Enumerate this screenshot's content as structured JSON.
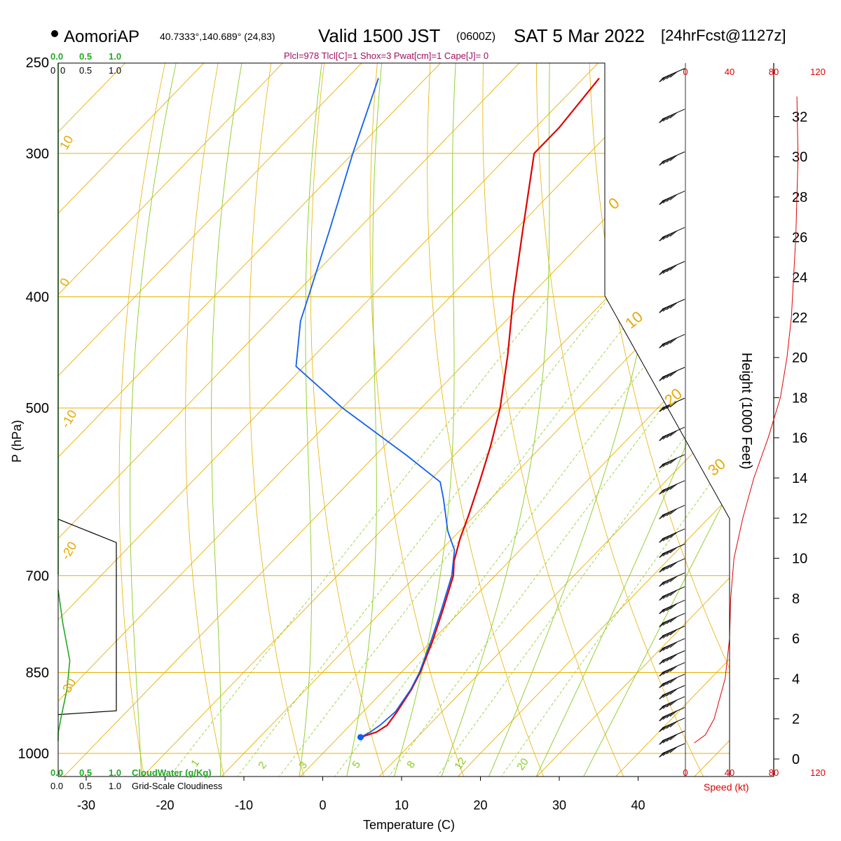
{
  "header": {
    "station": "AomoriAP",
    "coords": "40.7333°,140.689° (24,83)",
    "valid": "Valid 1500 JST",
    "utc": "(0600Z)",
    "date": "SAT 5 Mar 2022",
    "forecast": "[24hrFcst@1127z]",
    "params": "Plcl=978 Tlcl[C]=1 Shox=3 Pwat[cm]=1 Cape[J]= 0"
  },
  "labels": {
    "y_axis": "P (hPa)",
    "x_axis": "Temperature (C)",
    "height_axis": "Height (1000 Feet)",
    "speed_axis": "Speed (kt)",
    "cloud_water": "CloudWater (g/Kg)",
    "cloudiness": "Grid-Scale Cloudiness",
    "scale_0": "0.0",
    "scale_05": "0.5",
    "scale_10": "1.0",
    "scale_0_short": "0"
  },
  "colors": {
    "temperature": "#e00000",
    "dewpoint": "#1060f0",
    "isobar_isotherm": "#e8b000",
    "mixing_ratio": "#88cc22",
    "moist_adiabat": "#88cc22",
    "cloud_water": "#22aa22",
    "wind_speed": "#e00000",
    "cloudiness": "#000000"
  },
  "chart_data": {
    "type": "line",
    "title": "AomoriAP Valid 1500 JST SAT 5 Mar 2022",
    "xlabel": "Temperature (C)",
    "ylabel": "P (hPa)",
    "xlim": [
      -33.5,
      47
    ],
    "ylim": [
      1030,
      250
    ],
    "y_scale": "log",
    "grid": true,
    "pressure_levels": [
      250,
      300,
      400,
      500,
      700,
      850,
      1000
    ],
    "temperature_ticks": [
      -30,
      -20,
      -10,
      0,
      10,
      20,
      30,
      40
    ],
    "isotherm_labels": [
      "10",
      "0",
      "-10",
      "-20",
      "-30"
    ],
    "adiabat_labels": [
      "0",
      "10",
      "20",
      "30"
    ],
    "mixing_ratio_labels": [
      "1",
      "2",
      "3",
      "5",
      "8",
      "12",
      "20"
    ],
    "series": [
      {
        "name": "temperature",
        "points": [
          {
            "p": 968,
            "t": 2.8
          },
          {
            "p": 958,
            "t": 4.2
          },
          {
            "p": 945,
            "t": 4.7
          },
          {
            "p": 920,
            "t": 4.3
          },
          {
            "p": 880,
            "t": 3.4
          },
          {
            "p": 850,
            "t": 2.4
          },
          {
            "p": 800,
            "t": 0.2
          },
          {
            "p": 750,
            "t": -2.4
          },
          {
            "p": 700,
            "t": -5.3
          },
          {
            "p": 680,
            "t": -7.0
          },
          {
            "p": 650,
            "t": -9.0
          },
          {
            "p": 620,
            "t": -10.8
          },
          {
            "p": 580,
            "t": -13.5
          },
          {
            "p": 540,
            "t": -16.5
          },
          {
            "p": 500,
            "t": -20.0
          },
          {
            "p": 450,
            "t": -25.5
          },
          {
            "p": 400,
            "t": -32.0
          },
          {
            "p": 350,
            "t": -39.0
          },
          {
            "p": 300,
            "t": -47.0
          },
          {
            "p": 285,
            "t": -47.0
          },
          {
            "p": 258,
            "t": -48.0
          }
        ]
      },
      {
        "name": "dewpoint",
        "points": [
          {
            "p": 968,
            "t": 2.8
          },
          {
            "p": 958,
            "t": 3.4
          },
          {
            "p": 945,
            "t": 3.8
          },
          {
            "p": 920,
            "t": 4.1
          },
          {
            "p": 880,
            "t": 3.3
          },
          {
            "p": 850,
            "t": 2.3
          },
          {
            "p": 800,
            "t": 0.0
          },
          {
            "p": 750,
            "t": -2.6
          },
          {
            "p": 700,
            "t": -5.5
          },
          {
            "p": 665,
            "t": -8.3
          },
          {
            "p": 640,
            "t": -11.5
          },
          {
            "p": 600,
            "t": -16.0
          },
          {
            "p": 580,
            "t": -18.5
          },
          {
            "p": 550,
            "t": -26.0
          },
          {
            "p": 500,
            "t": -40.0
          },
          {
            "p": 460,
            "t": -51.0
          },
          {
            "p": 420,
            "t": -56.0
          },
          {
            "p": 400,
            "t": -58.0
          },
          {
            "p": 350,
            "t": -63.5
          },
          {
            "p": 300,
            "t": -70.0
          },
          {
            "p": 258,
            "t": -76.0
          }
        ]
      }
    ],
    "wind_speed_profile": {
      "xlabel": "Speed (kt)",
      "xticks": [
        0,
        40,
        80,
        120
      ],
      "height_ticks_kft": [
        0,
        2,
        4,
        6,
        8,
        10,
        12,
        14,
        16,
        18,
        20,
        22,
        24,
        26,
        28,
        30,
        32
      ],
      "points": [
        {
          "h": 0.8,
          "s": 8
        },
        {
          "h": 1.2,
          "s": 18
        },
        {
          "h": 2.0,
          "s": 26
        },
        {
          "h": 4.0,
          "s": 36
        },
        {
          "h": 6.0,
          "s": 40
        },
        {
          "h": 8.0,
          "s": 41
        },
        {
          "h": 10.0,
          "s": 44
        },
        {
          "h": 12.0,
          "s": 52
        },
        {
          "h": 14.0,
          "s": 62
        },
        {
          "h": 16.0,
          "s": 75
        },
        {
          "h": 18.0,
          "s": 86
        },
        {
          "h": 20.0,
          "s": 92
        },
        {
          "h": 22.0,
          "s": 96
        },
        {
          "h": 26.0,
          "s": 100
        },
        {
          "h": 30.0,
          "s": 102
        },
        {
          "h": 33.0,
          "s": 101
        }
      ]
    },
    "cloudiness_profile": [
      {
        "p": 925,
        "c": 0.0
      },
      {
        "p": 918,
        "c": 1.0
      },
      {
        "p": 655,
        "c": 1.0
      },
      {
        "p": 625,
        "c": 0.0
      }
    ],
    "cloud_water_profile": [
      {
        "p": 975,
        "q": 0.0
      },
      {
        "p": 960,
        "q": 0.0
      },
      {
        "p": 930,
        "q": 0.05
      },
      {
        "p": 880,
        "q": 0.15
      },
      {
        "p": 830,
        "q": 0.2
      },
      {
        "p": 770,
        "q": 0.08
      },
      {
        "p": 720,
        "q": 0.0
      }
    ],
    "wind_barbs": [
      {
        "p": 258
      },
      {
        "p": 280
      },
      {
        "p": 305
      },
      {
        "p": 330
      },
      {
        "p": 355
      },
      {
        "p": 380
      },
      {
        "p": 410
      },
      {
        "p": 440
      },
      {
        "p": 470
      },
      {
        "p": 500
      },
      {
        "p": 530
      },
      {
        "p": 560
      },
      {
        "p": 590
      },
      {
        "p": 620
      },
      {
        "p": 650
      },
      {
        "p": 670
      },
      {
        "p": 690
      },
      {
        "p": 710
      },
      {
        "p": 730
      },
      {
        "p": 750
      },
      {
        "p": 770
      },
      {
        "p": 790
      },
      {
        "p": 810
      },
      {
        "p": 830
      },
      {
        "p": 850
      },
      {
        "p": 870
      },
      {
        "p": 890
      },
      {
        "p": 910
      },
      {
        "p": 930
      },
      {
        "p": 950
      },
      {
        "p": 975
      },
      {
        "p": 1000
      }
    ]
  }
}
